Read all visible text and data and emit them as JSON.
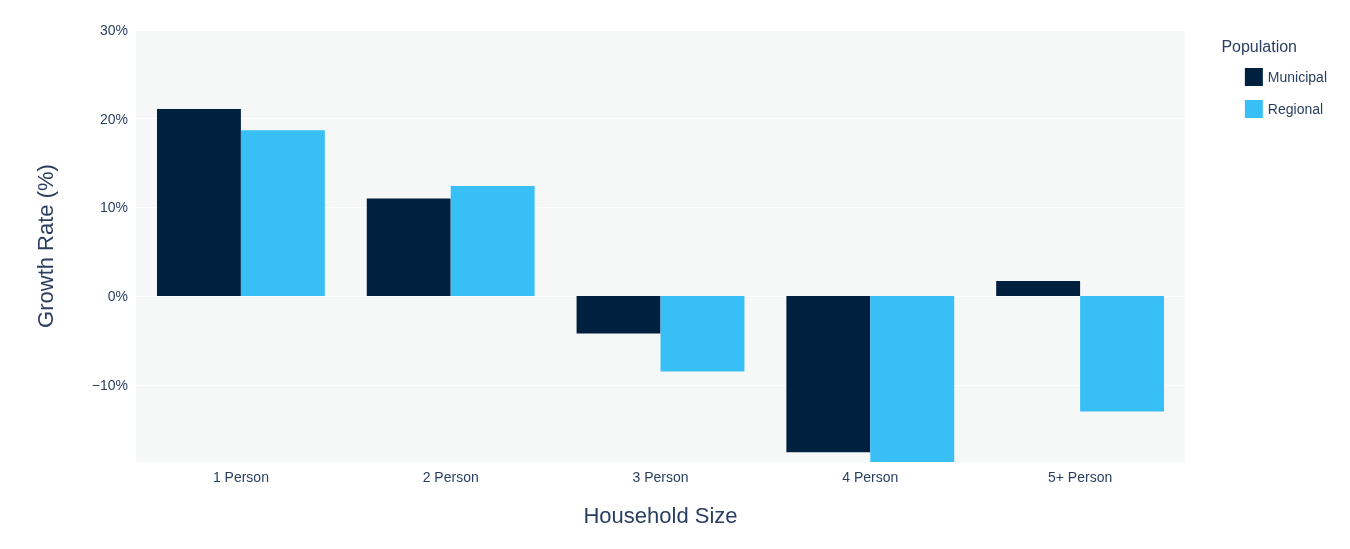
{
  "chart_data": {
    "type": "bar",
    "xlabel": "Household Size",
    "ylabel": "Growth Rate (%)",
    "legend_title": "Population",
    "categories": [
      "1 Person",
      "2 Person",
      "3 Person",
      "4 Person",
      "5+ Person"
    ],
    "series": [
      {
        "name": "Municipal",
        "color": "#00203f",
        "values": [
          21.1,
          11.0,
          -4.2,
          -17.6,
          1.7
        ]
      },
      {
        "name": "Regional",
        "color": "#38bff5",
        "values": [
          18.7,
          12.4,
          -8.5,
          -18.7,
          -13.0
        ]
      }
    ],
    "ylim": [
      -18.7,
      30
    ],
    "yticks": [
      {
        "value": -10,
        "label": "−10%"
      },
      {
        "value": 0,
        "label": "0%"
      },
      {
        "value": 10,
        "label": "10%"
      },
      {
        "value": 20,
        "label": "20%"
      },
      {
        "value": 30,
        "label": "30%"
      }
    ],
    "grid": "y",
    "legend": "top right"
  }
}
